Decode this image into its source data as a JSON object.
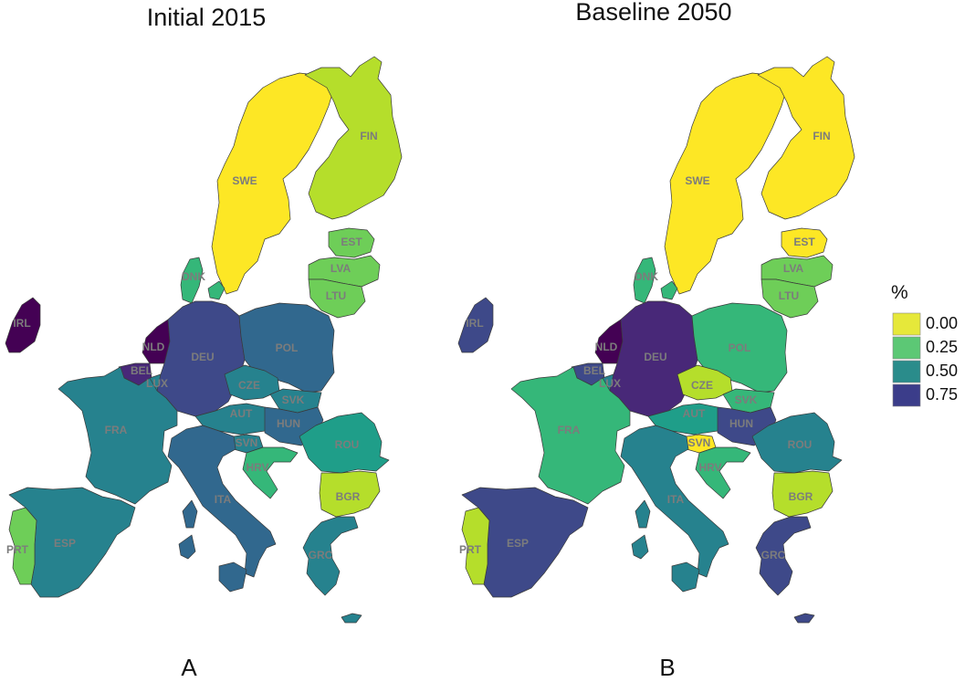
{
  "panels": [
    {
      "id": "A",
      "title": "Initial 2015",
      "letter": "A",
      "values": {
        "SWE": 0.03,
        "FIN": 0.12,
        "EST": 0.18,
        "LVA": 0.22,
        "LTU": 0.22,
        "DNK": 0.28,
        "IRL": 1.0,
        "NLD": 0.98,
        "BEL": 0.9,
        "LUX": 0.6,
        "DEU": 0.82,
        "POL": 0.68,
        "CZE": 0.55,
        "SVK": 0.6,
        "AUT": 0.55,
        "HUN": 0.64,
        "SVN": 0.58,
        "HRV": 0.32,
        "ROU": 0.44,
        "BGR": 0.16,
        "GRC": 0.55,
        "ITA": 0.66,
        "FRA": 0.55,
        "ESP": 0.6,
        "PRT": 0.18
      }
    },
    {
      "id": "B",
      "title": "Baseline 2050",
      "letter": "B",
      "values": {
        "SWE": 0.0,
        "FIN": 0.02,
        "EST": 0.04,
        "LVA": 0.2,
        "LTU": 0.2,
        "DNK": 0.28,
        "IRL": 0.8,
        "NLD": 0.95,
        "BEL": 0.8,
        "LUX": 0.55,
        "DEU": 0.9,
        "POL": 0.28,
        "CZE": 0.08,
        "SVK": 0.3,
        "AUT": 0.4,
        "HUN": 0.82,
        "SVN": 0.05,
        "HRV": 0.38,
        "ROU": 0.55,
        "BGR": 0.1,
        "GRC": 0.78,
        "ITA": 0.55,
        "FRA": 0.34,
        "ESP": 0.78,
        "PRT": 0.15
      }
    }
  ],
  "legend": {
    "title": "%",
    "items": [
      {
        "label": "0.00",
        "color": "#e6e83a"
      },
      {
        "label": "0.25",
        "color": "#5cc875"
      },
      {
        "label": "0.50",
        "color": "#2a8c8b"
      },
      {
        "label": "0.75",
        "color": "#3b3d8a"
      }
    ]
  },
  "colorscale": [
    "#fde725",
    "#b5de2b",
    "#6ece58",
    "#35b779",
    "#1f9e89",
    "#26828e",
    "#31688e",
    "#3e4989",
    "#482878",
    "#440154"
  ]
}
